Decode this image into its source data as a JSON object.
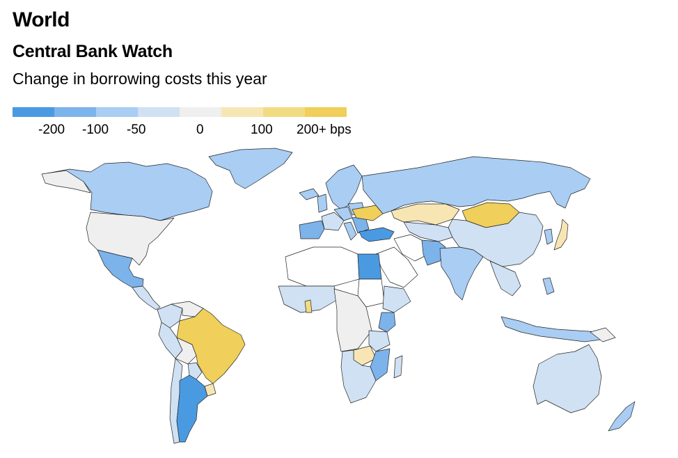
{
  "header": {
    "region": "World",
    "title": "Central Bank Watch",
    "subtitle": "Change in borrowing costs this year"
  },
  "legend": {
    "colors": [
      "#4a9ae1",
      "#7cb3ea",
      "#a9cdf3",
      "#cfe1f3",
      "#efefef",
      "#f7e6b4",
      "#f1dc84",
      "#f0cf5a"
    ],
    "labels": [
      "-200",
      "-100",
      "-50",
      "0",
      "100",
      "200+ bps"
    ]
  },
  "map": {
    "no_data_color": "#ffffff",
    "countries": [
      {
        "name": "Canada",
        "bucket": "-50"
      },
      {
        "name": "United States",
        "bucket": "0"
      },
      {
        "name": "Mexico",
        "bucket": "-100"
      },
      {
        "name": "Brazil",
        "bucket": "200+"
      },
      {
        "name": "Argentina",
        "bucket": "-200"
      },
      {
        "name": "Uruguay",
        "bucket": "100"
      },
      {
        "name": "Russia",
        "bucket": "-50"
      },
      {
        "name": "Ukraine",
        "bucket": "200+"
      },
      {
        "name": "Kazakhstan",
        "bucket": "100"
      },
      {
        "name": "Mongolia",
        "bucket": "200+"
      },
      {
        "name": "China",
        "bucket": "-25"
      },
      {
        "name": "Japan",
        "bucket": "100"
      },
      {
        "name": "India",
        "bucket": "-50"
      },
      {
        "name": "Pakistan",
        "bucket": "-100"
      },
      {
        "name": "Turkey",
        "bucket": "-200"
      },
      {
        "name": "Egypt",
        "bucket": "-200"
      },
      {
        "name": "Australia",
        "bucket": "-25"
      },
      {
        "name": "New Zealand",
        "bucket": "-50"
      },
      {
        "name": "Indonesia",
        "bucket": "-50"
      },
      {
        "name": "Greenland",
        "bucket": "-50"
      }
    ]
  }
}
